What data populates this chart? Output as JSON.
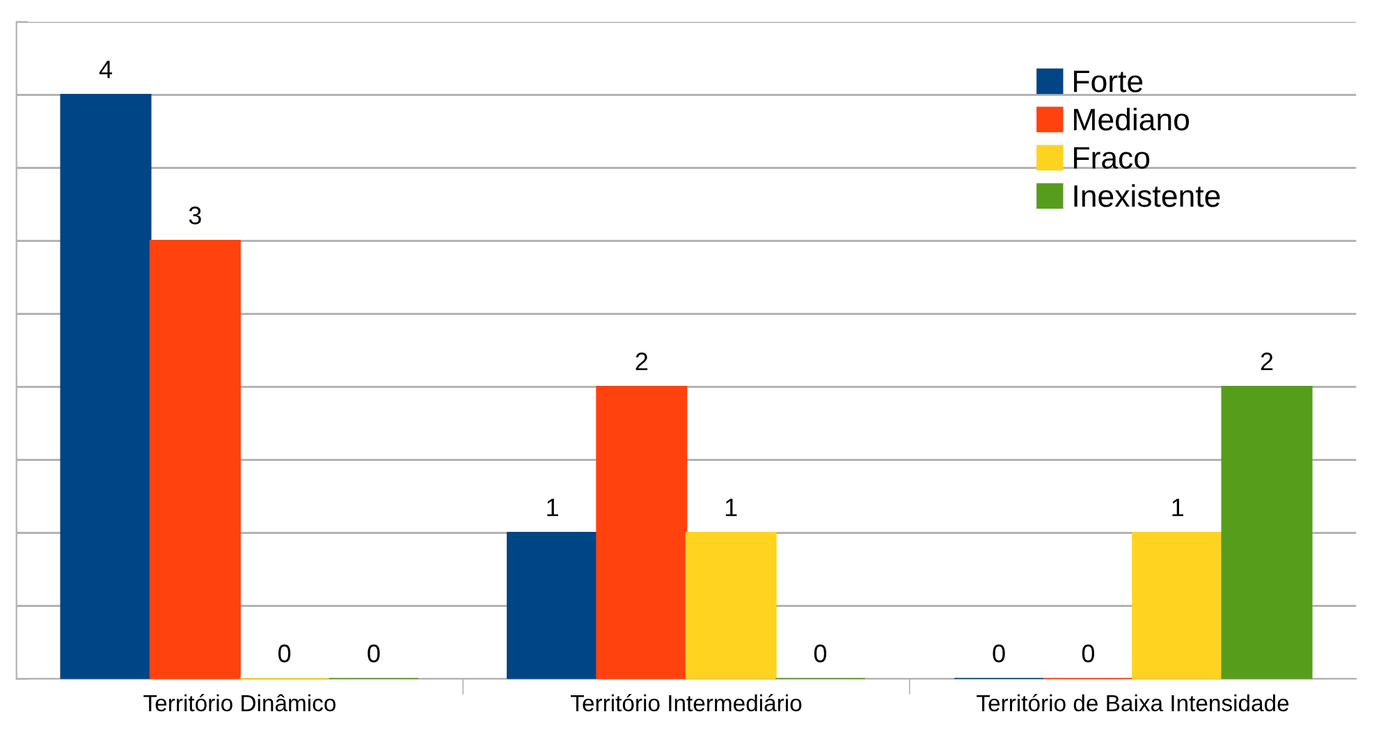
{
  "chart_data": {
    "type": "bar",
    "categories": [
      "Território Dinâmico",
      "Território Intermediário",
      "Território de Baixa Intensidade"
    ],
    "series": [
      {
        "name": "Forte",
        "color": "#004586",
        "values": [
          4,
          1,
          0
        ]
      },
      {
        "name": "Mediano",
        "color": "#ff420e",
        "values": [
          3,
          2,
          0
        ]
      },
      {
        "name": "Fraco",
        "color": "#ffd320",
        "values": [
          0,
          1,
          1
        ]
      },
      {
        "name": "Inexistente",
        "color": "#579d1c",
        "values": [
          0,
          0,
          2
        ]
      }
    ],
    "ylim": [
      0,
      4.5
    ],
    "yticks": [
      {
        "value": 0,
        "label": null
      },
      {
        "value": 0.5,
        "label": null
      },
      {
        "value": 1,
        "label": null
      },
      {
        "value": 1.5,
        "label": null
      },
      {
        "value": 2,
        "label": null
      },
      {
        "value": 2.5,
        "label": null
      },
      {
        "value": 3,
        "label": null
      },
      {
        "value": 3.5,
        "label": null
      },
      {
        "value": 4,
        "label": null
      },
      {
        "value": 4.5,
        "label": null
      }
    ],
    "tick_labels": "x",
    "grid": "y",
    "legend": "top right",
    "data_labels": true
  }
}
